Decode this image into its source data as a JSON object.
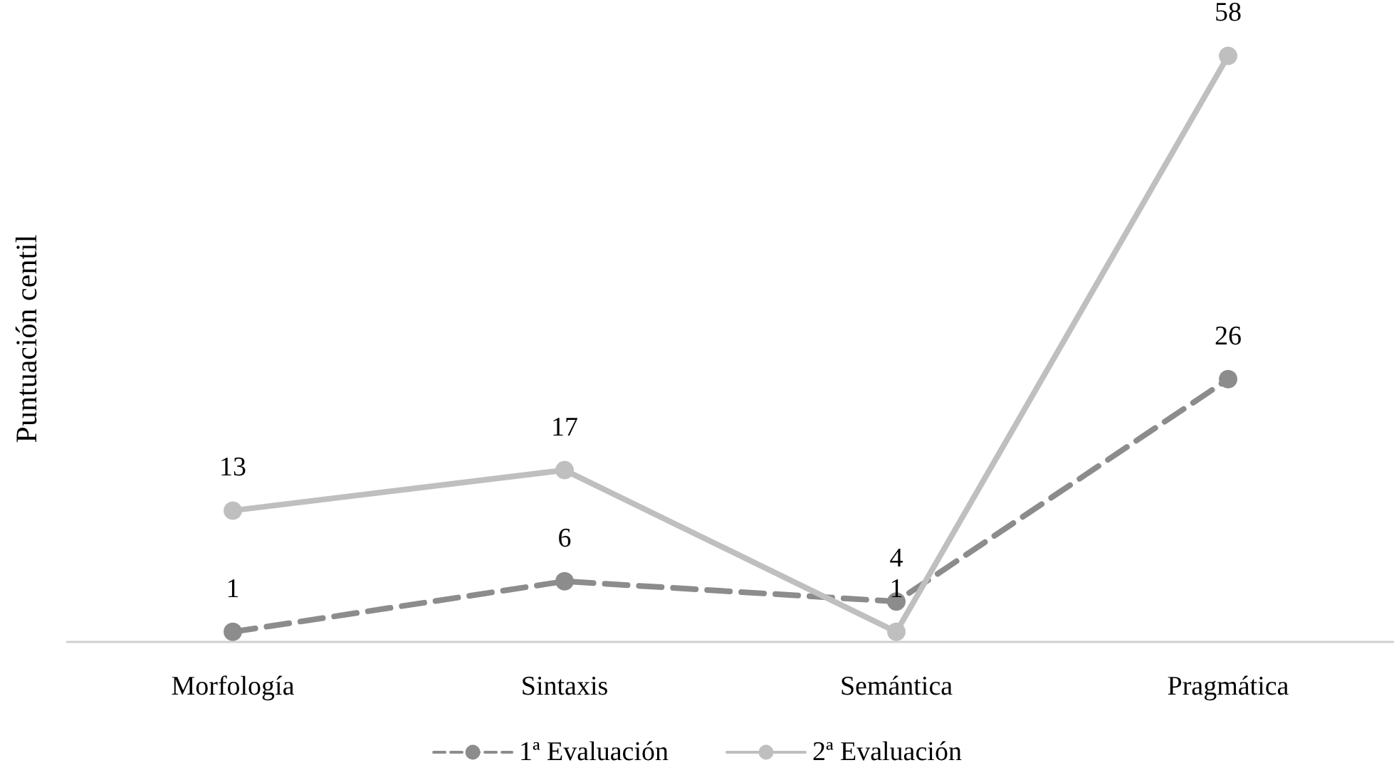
{
  "chart_data": {
    "type": "line",
    "ylabel": "Puntuación centil",
    "categories": [
      "Morfología",
      "Sintaxis",
      "Semántica",
      "Pragmática"
    ],
    "series": [
      {
        "name": "1ª Evaluación",
        "color": "#8c8c8c",
        "values": [
          1,
          6,
          4,
          26
        ],
        "line_style": "dashed"
      },
      {
        "name": "2ª Evaluación",
        "color": "#bfbfbf",
        "values": [
          13,
          17,
          1,
          58
        ],
        "line_style": "solid"
      }
    ],
    "data_labels": true,
    "marker": "circle",
    "legend": "bottom",
    "grid": false
  }
}
